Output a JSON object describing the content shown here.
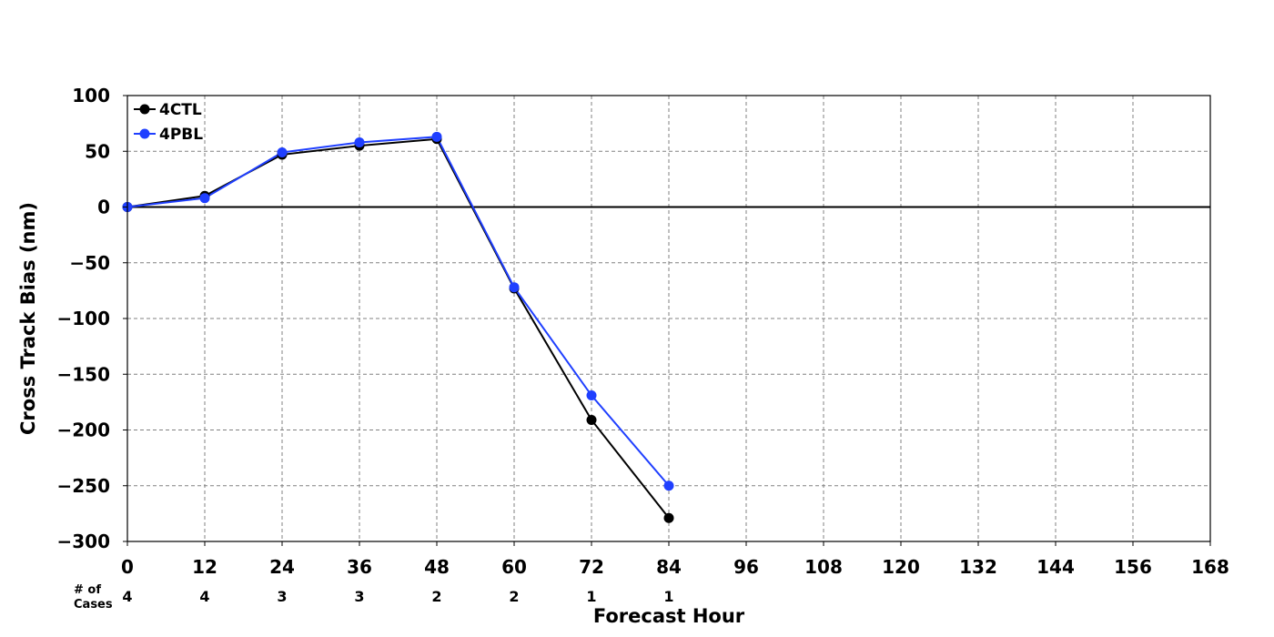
{
  "chart_data": {
    "type": "line",
    "title": "",
    "xlabel": "Forecast Hour",
    "ylabel": "Cross Track Bias (nm)",
    "xlim": [
      0,
      168
    ],
    "ylim": [
      -300,
      100
    ],
    "xticks": [
      0,
      12,
      24,
      36,
      48,
      60,
      72,
      84,
      96,
      108,
      120,
      132,
      144,
      156,
      168
    ],
    "yticks": [
      -300,
      -250,
      -200,
      -150,
      -100,
      -50,
      0,
      50,
      100
    ],
    "grid": true,
    "zero_line": true,
    "legend_position": "top-left",
    "cases_header": [
      "# of",
      "Cases"
    ],
    "cases": [
      {
        "x": 0,
        "n": "4"
      },
      {
        "x": 12,
        "n": "4"
      },
      {
        "x": 24,
        "n": "3"
      },
      {
        "x": 36,
        "n": "3"
      },
      {
        "x": 48,
        "n": "2"
      },
      {
        "x": 60,
        "n": "2"
      },
      {
        "x": 72,
        "n": "1"
      },
      {
        "x": 84,
        "n": "1"
      }
    ],
    "x": [
      0,
      12,
      24,
      36,
      48,
      60,
      72,
      84
    ],
    "series": [
      {
        "name": "4CTL",
        "color": "#000000",
        "values": [
          0,
          10,
          47,
          55,
          61,
          -73,
          -191,
          -279
        ]
      },
      {
        "name": "4PBL",
        "color": "#1f3fff",
        "values": [
          0,
          8,
          49,
          58,
          63,
          -72,
          -169,
          -250
        ]
      }
    ]
  }
}
